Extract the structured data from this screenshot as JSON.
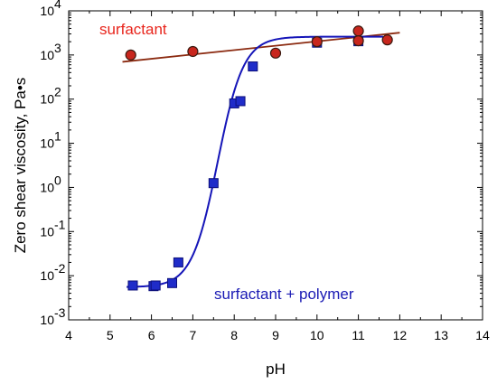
{
  "chart_data": {
    "type": "scatter",
    "xlabel": "pH",
    "ylabel": "Zero shear viscosity, Pa•s",
    "xlim": [
      4,
      14
    ],
    "ylim": [
      0.001,
      10000
    ],
    "y_scale": "log",
    "grid": false,
    "x_ticks": [
      "4",
      "5",
      "6",
      "7",
      "8",
      "9",
      "10",
      "11",
      "12",
      "13",
      "14"
    ],
    "y_ticks": [
      {
        "base": "10",
        "exp": "-3"
      },
      {
        "base": "10",
        "exp": "-2"
      },
      {
        "base": "10",
        "exp": "-1"
      },
      {
        "base": "10",
        "exp": "0"
      },
      {
        "base": "10",
        "exp": "1"
      },
      {
        "base": "10",
        "exp": "2"
      },
      {
        "base": "10",
        "exp": "3"
      },
      {
        "base": "10",
        "exp": "4"
      }
    ],
    "annotations": [
      {
        "text": "surfactant",
        "color": "#e8251c"
      },
      {
        "text": "surfactant + polymer",
        "color": "#1a1ab4"
      }
    ],
    "series": [
      {
        "marker": "circle",
        "fill": "#c8261d",
        "stroke": "#3a1a10",
        "line_color": "#8b2a10",
        "points": [
          [
            5.5,
            1000
          ],
          [
            7.0,
            1200
          ],
          [
            9.0,
            1100
          ],
          [
            10.0,
            2000
          ],
          [
            11.0,
            3500
          ],
          [
            11.0,
            2100
          ],
          [
            11.7,
            2200
          ]
        ],
        "fit_line": [
          [
            5.3,
            700
          ],
          [
            12.0,
            3200
          ]
        ]
      },
      {
        "marker": "square",
        "fill": "#1f2cc9",
        "stroke": "#0c0f7a",
        "line_color": "#1515b8",
        "points": [
          [
            5.55,
            0.006
          ],
          [
            6.05,
            0.0058
          ],
          [
            6.1,
            0.006
          ],
          [
            6.5,
            0.0068
          ],
          [
            6.65,
            0.02
          ],
          [
            7.5,
            1.25
          ],
          [
            8.0,
            80
          ],
          [
            8.15,
            90
          ],
          [
            8.45,
            550
          ],
          [
            10.0,
            1900
          ],
          [
            11.0,
            2050
          ]
        ],
        "fit_curve": {
          "low": 0.0055,
          "high": 2600,
          "midpoint": 7.6,
          "slope": 3.2,
          "x_range": [
            5.4,
            11.6
          ]
        }
      }
    ]
  }
}
